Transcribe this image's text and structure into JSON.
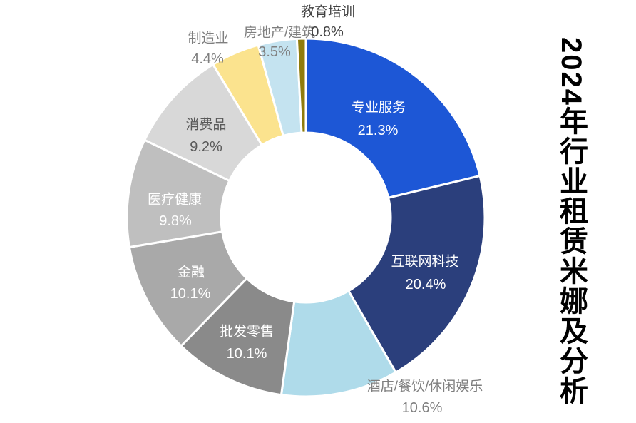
{
  "chart_data": {
    "type": "pie",
    "subtype": "donut",
    "title": "2024年行业租赁米娜及分析",
    "title_orientation": "vertical-right",
    "legend_position": "none",
    "grid": false,
    "background_color": "#ffffff",
    "slice_gap_color": "#ffffff",
    "start_angle_deg": 0,
    "direction": "clockwise",
    "segments": [
      {
        "label": "专业服务",
        "value": 21.3,
        "display": "21.3%",
        "color": "#1d57d6",
        "text_color": "#ffffff",
        "label_inside": true
      },
      {
        "label": "互联网科技",
        "value": 20.4,
        "display": "20.4%",
        "color": "#2b3f7c",
        "text_color": "#ffffff",
        "label_inside": true
      },
      {
        "label": "酒店/餐饮/休闲娱乐",
        "value": 10.6,
        "display": "10.6%",
        "color": "#afdbea",
        "text_color": "#7f7f7f",
        "label_inside": false
      },
      {
        "label": "批发零售",
        "value": 10.1,
        "display": "10.1%",
        "color": "#8a8a8a",
        "text_color": "#ffffff",
        "label_inside": true
      },
      {
        "label": "金融",
        "value": 10.1,
        "display": "10.1%",
        "color": "#a9a9a9",
        "text_color": "#ffffff",
        "label_inside": true
      },
      {
        "label": "医疗健康",
        "value": 9.8,
        "display": "9.8%",
        "color": "#bfbfbf",
        "text_color": "#ffffff",
        "label_inside": true
      },
      {
        "label": "消费品",
        "value": 9.2,
        "display": "9.2%",
        "color": "#d8d8d8",
        "text_color": "#595959",
        "label_inside": true
      },
      {
        "label": "制造业",
        "value": 4.4,
        "display": "4.4%",
        "color": "#fbe38e",
        "text_color": "#7f7f7f",
        "label_inside": false
      },
      {
        "label": "房地产/建筑",
        "value": 3.5,
        "display": "3.5%",
        "color": "#c4e3f0",
        "text_color": "#7f7f7f",
        "label_inside": false
      },
      {
        "label": "教育培训",
        "value": 0.8,
        "display": "0.8%",
        "color": "#8f7c0c",
        "text_color": "#404040",
        "label_inside": false
      }
    ]
  }
}
